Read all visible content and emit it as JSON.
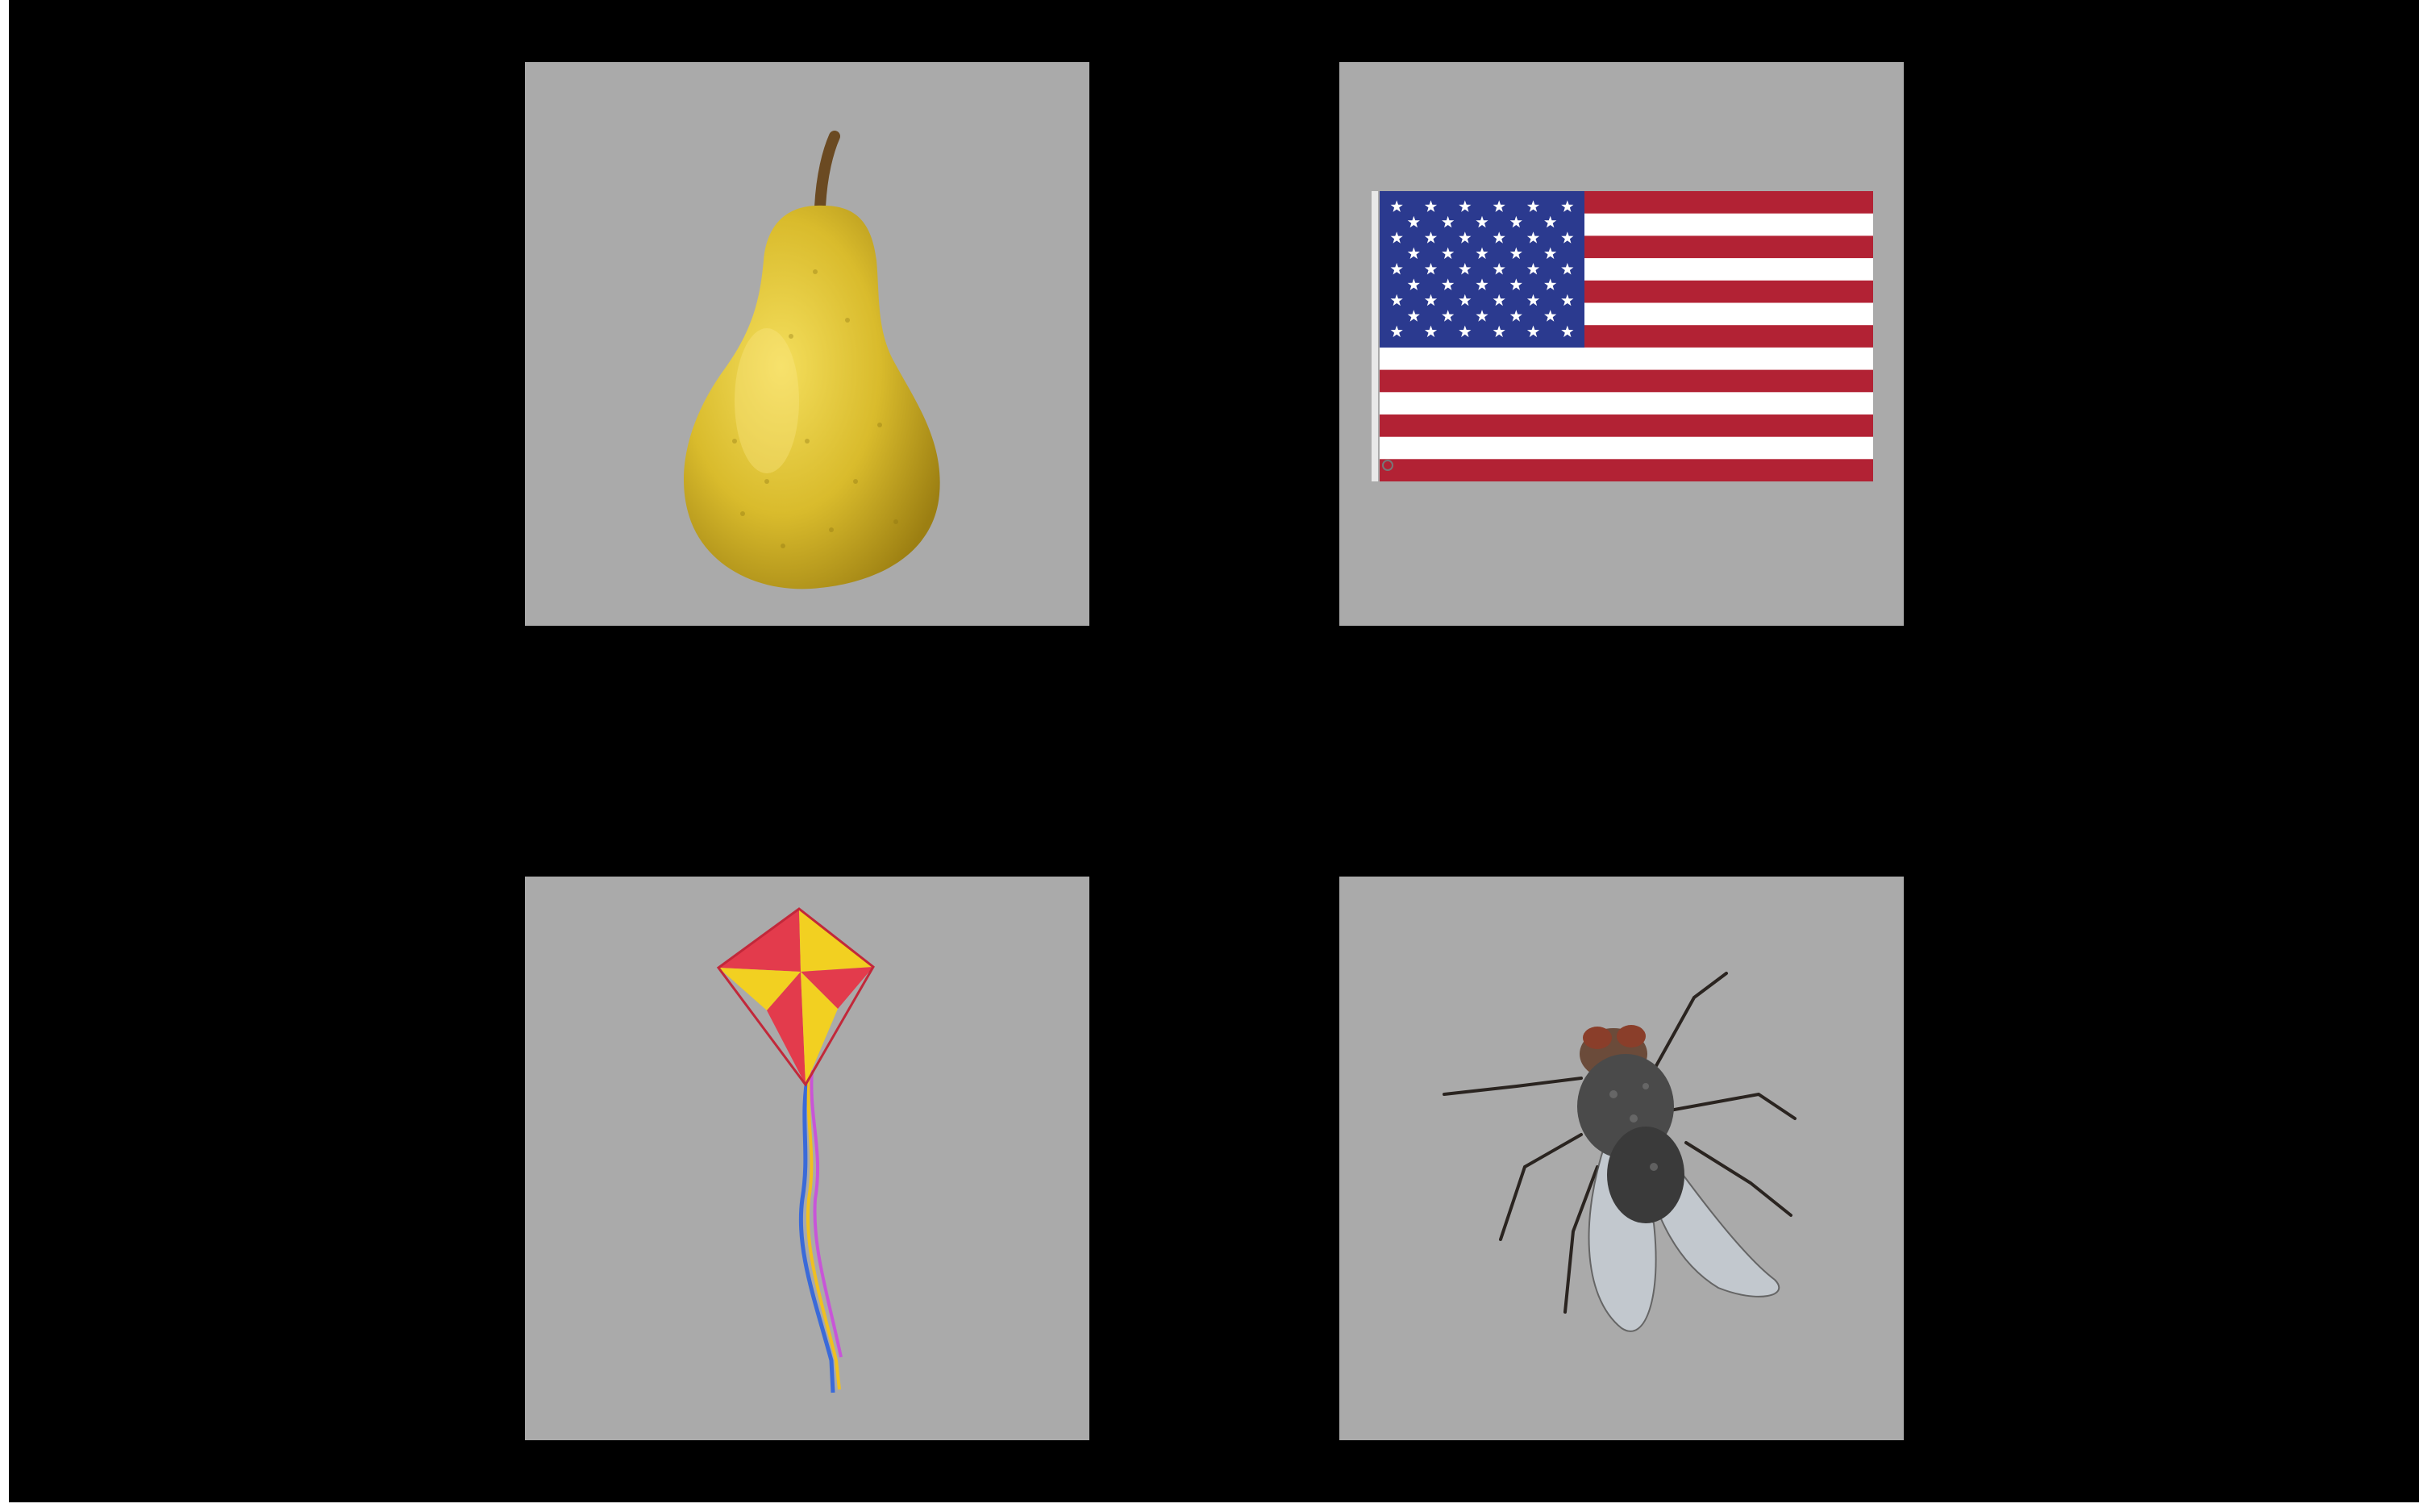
{
  "screen": {
    "background": "#000000",
    "tile_background": "#aaaaaa"
  },
  "stimuli": [
    {
      "id": "pear",
      "icon": "pear-icon",
      "accent": "#d4b62a"
    },
    {
      "id": "flag",
      "icon": "us-flag-icon",
      "accent": "#b22234"
    },
    {
      "id": "kite",
      "icon": "kite-icon",
      "accent": "#f2d021"
    },
    {
      "id": "fly",
      "icon": "housefly-icon",
      "accent": "#3a3a3a"
    }
  ]
}
